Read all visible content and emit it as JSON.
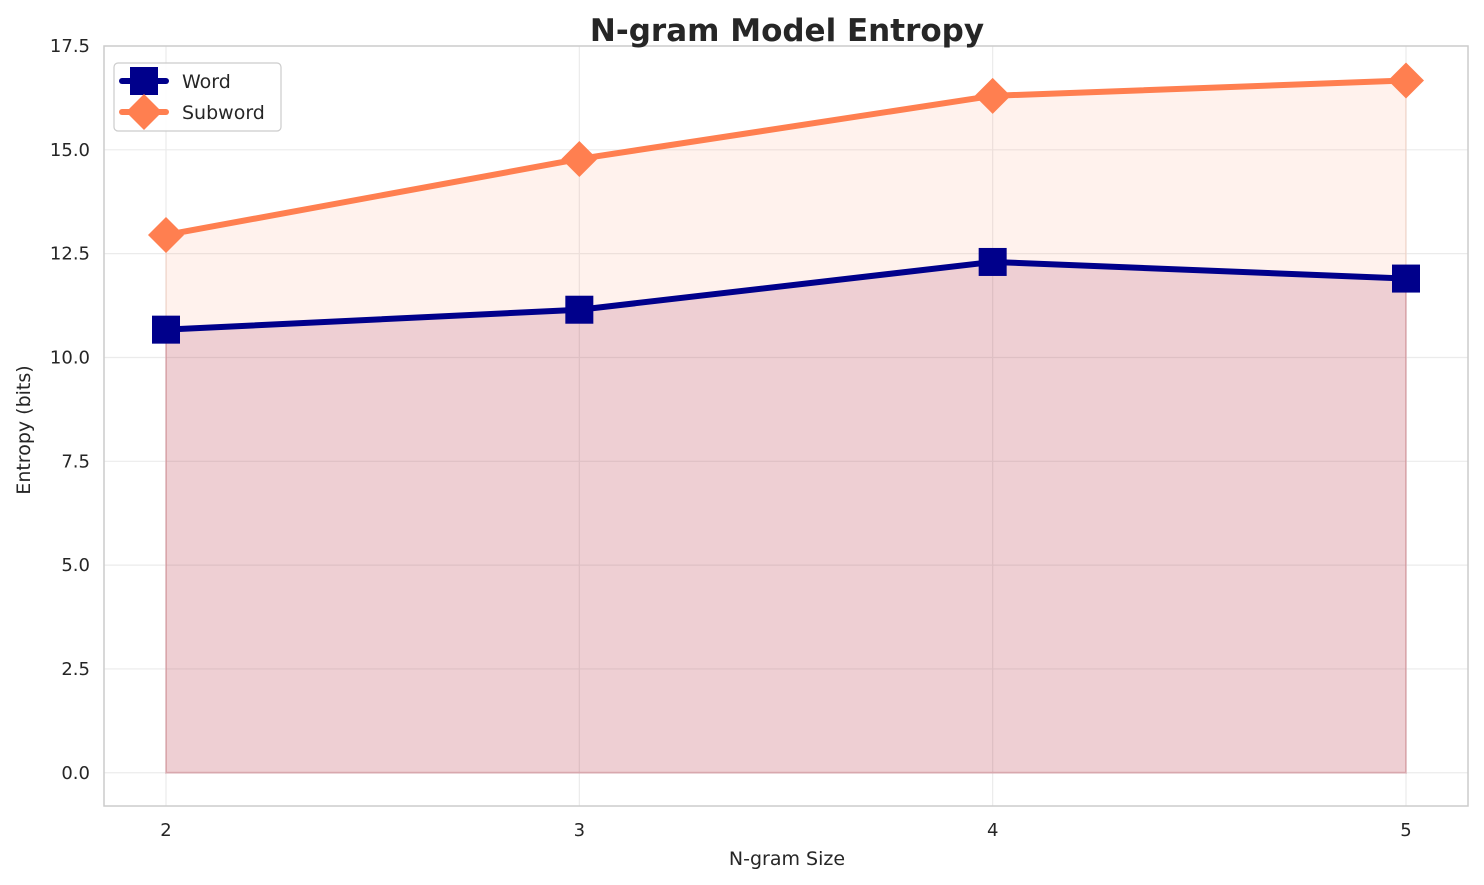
{
  "chart_data": {
    "type": "area",
    "title": "N-gram Model Entropy",
    "xlabel": "N-gram Size",
    "ylabel": "Entropy (bits)",
    "x": [
      2,
      3,
      4,
      5
    ],
    "x_tick_labels": [
      "2",
      "3",
      "4",
      "5"
    ],
    "ylim": [
      -0.8,
      17.5
    ],
    "xlim": [
      1.85,
      5.15
    ],
    "y_ticks": [
      0.0,
      2.5,
      5.0,
      7.5,
      10.0,
      12.5,
      15.0,
      17.5
    ],
    "y_tick_labels": [
      "0.0",
      "2.5",
      "5.0",
      "7.5",
      "10.0",
      "12.5",
      "15.0",
      "17.5"
    ],
    "grid": true,
    "legend_position": "top-left",
    "series": [
      {
        "name": "Word",
        "values": [
          10.67,
          11.15,
          12.3,
          11.9
        ],
        "color": "#00008b",
        "marker": "square",
        "fill": "#800040",
        "fill_opacity": 0.15
      },
      {
        "name": "Subword",
        "values": [
          12.95,
          14.78,
          16.3,
          16.67
        ],
        "color": "#ff7f50",
        "marker": "diamond",
        "fill": "#ff7f50",
        "fill_opacity": 0.1
      }
    ]
  }
}
